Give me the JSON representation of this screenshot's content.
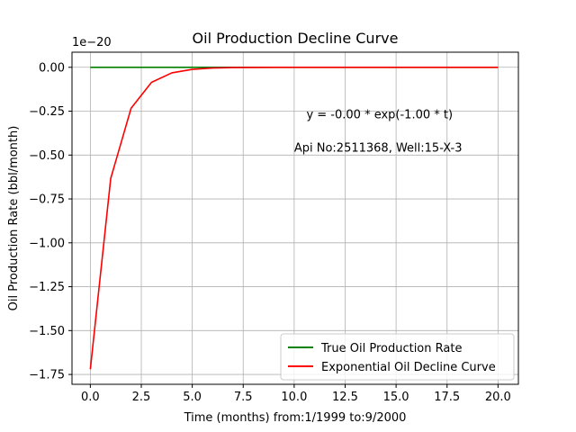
{
  "chart_data": {
    "type": "line",
    "title": "Oil Production Decline Curve",
    "xlabel": "Time (months) from:1/1999 to:9/2000",
    "ylabel": "Oil Production Rate (bbl/month)",
    "y_offset_label": "1e−20",
    "xlim": [
      -0.9,
      21.0
    ],
    "ylim": [
      -1.806,
      0.086
    ],
    "xticks": [
      0.0,
      2.5,
      5.0,
      7.5,
      10.0,
      12.5,
      15.0,
      17.5,
      20.0
    ],
    "xtick_labels": [
      "0.0",
      "2.5",
      "5.0",
      "7.5",
      "10.0",
      "12.5",
      "15.0",
      "17.5",
      "20.0"
    ],
    "yticks": [
      0.0,
      -0.25,
      -0.5,
      -0.75,
      -1.0,
      -1.25,
      -1.5,
      -1.75
    ],
    "ytick_labels": [
      "0.00",
      "−0.25",
      "−0.50",
      "−0.75",
      "−1.00",
      "−1.25",
      "−1.50",
      "−1.75"
    ],
    "grid": true,
    "legend_position": "lower-right",
    "series": [
      {
        "name": "True Oil Production Rate",
        "color": "#008000",
        "x": [
          0,
          1,
          2,
          3,
          4,
          5,
          6,
          7,
          8,
          9,
          10,
          11,
          12,
          13,
          14,
          15,
          16,
          17,
          18,
          19,
          20
        ],
        "y": [
          0,
          0,
          0,
          0,
          0,
          0,
          0,
          0,
          0,
          0,
          0,
          0,
          0,
          0,
          0,
          0,
          0,
          0,
          0,
          0,
          0
        ]
      },
      {
        "name": "Exponential Oil Decline Curve",
        "color": "#ff0000",
        "x": [
          0,
          1,
          2,
          3,
          4,
          5,
          6,
          7,
          8,
          9,
          10,
          11,
          12,
          13,
          14,
          15,
          16,
          17,
          18,
          19,
          20
        ],
        "y": [
          -1.72,
          -0.633,
          -0.233,
          -0.0856,
          -0.0315,
          -0.0116,
          -0.00426,
          -0.00157,
          -0.00058,
          -0.00021,
          -7.8e-05,
          -2.9e-05,
          -1.06e-05,
          -3.9e-06,
          -1.4e-06,
          -5e-07,
          -2e-07,
          -1e-07,
          0,
          0,
          0
        ]
      }
    ],
    "annotations": [
      {
        "text": "y = -0.00 * exp(-1.00 * t)",
        "x": 10.6,
        "y": -0.29
      },
      {
        "text": "Api No:2511368, Well:15-X-3",
        "x": 10.0,
        "y": -0.48
      }
    ]
  }
}
